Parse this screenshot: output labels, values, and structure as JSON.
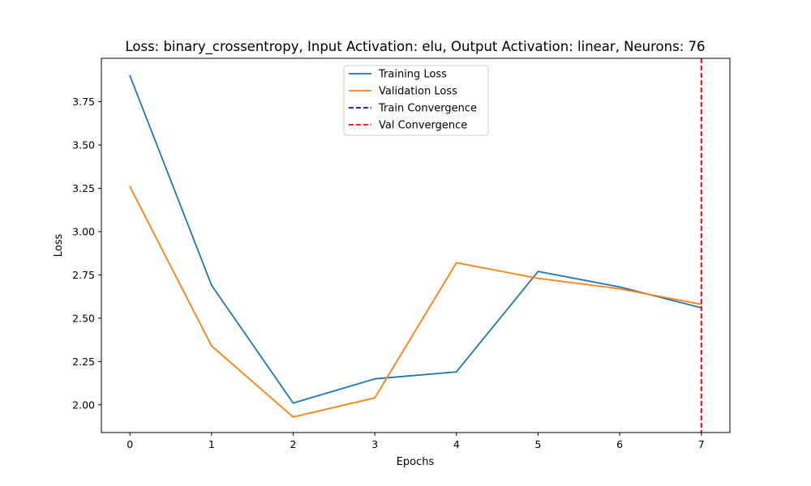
{
  "chart_data": {
    "type": "line",
    "title": "Loss: binary_crossentropy, Input Activation: elu, Output Activation: linear, Neurons: 76",
    "xlabel": "Epochs",
    "ylabel": "Loss",
    "x": [
      0,
      1,
      2,
      3,
      4,
      5,
      6,
      7
    ],
    "xlim": [
      -0.35,
      7.35
    ],
    "ylim": [
      1.84,
      4.0
    ],
    "xticks": [
      0,
      1,
      2,
      3,
      4,
      5,
      6,
      7
    ],
    "yticks": [
      2.0,
      2.25,
      2.5,
      2.75,
      3.0,
      3.25,
      3.5,
      3.75
    ],
    "ytick_labels": [
      "2.00",
      "2.25",
      "2.50",
      "2.75",
      "3.00",
      "3.25",
      "3.50",
      "3.75"
    ],
    "grid": false,
    "legend_position": "top-center",
    "series": [
      {
        "name": "Training Loss",
        "color": "#1f77b4",
        "style": "solid",
        "values": [
          3.9,
          2.69,
          2.01,
          2.15,
          2.19,
          2.77,
          2.68,
          2.56
        ]
      },
      {
        "name": "Validation Loss",
        "color": "#ff7f0e",
        "style": "solid",
        "values": [
          3.26,
          2.34,
          1.93,
          2.04,
          2.82,
          2.73,
          2.67,
          2.58
        ]
      }
    ],
    "vlines": [
      {
        "name": "Train Convergence",
        "color": "#0000ff",
        "style": "dashed",
        "x": 7
      },
      {
        "name": "Val Convergence",
        "color": "#ff0000",
        "style": "dashed",
        "x": 7
      }
    ]
  }
}
